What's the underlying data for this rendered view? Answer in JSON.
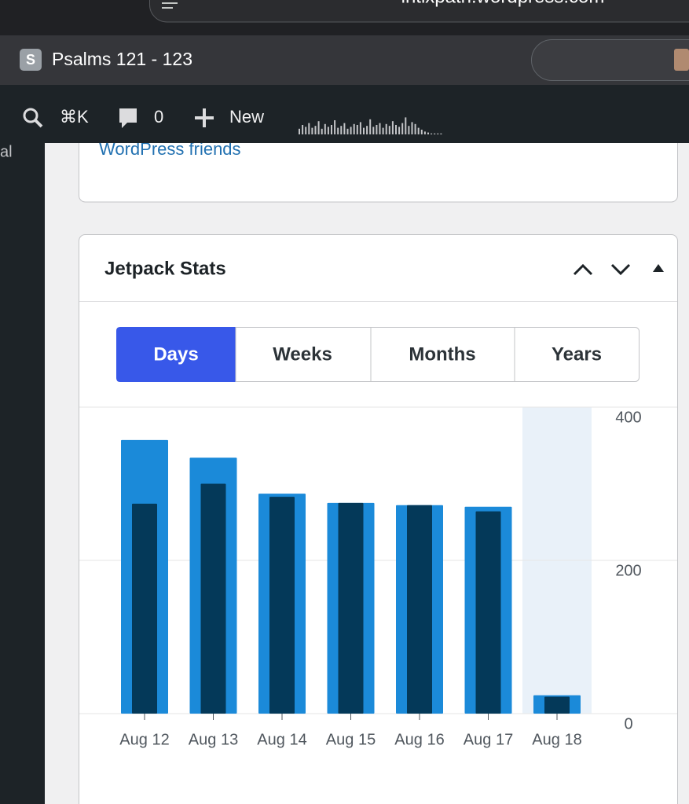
{
  "browser": {
    "url": "intlxpath.wordpress.com",
    "tab_icon": "S",
    "tab_title": "Psalms 121 - 123"
  },
  "admin_bar": {
    "shortcut": "⌘K",
    "comments": "0",
    "new": "New",
    "sparkline": [
      6,
      10,
      8,
      12,
      7,
      9,
      14,
      6,
      11,
      8,
      10,
      15,
      7,
      9,
      12,
      6,
      8,
      11,
      10,
      13,
      7,
      9,
      16,
      8,
      10,
      12,
      7,
      11,
      9,
      14,
      10,
      8,
      12,
      18,
      9,
      13,
      11,
      7,
      5,
      3,
      2,
      1,
      1,
      1,
      1
    ]
  },
  "sidebar": {
    "item": "al"
  },
  "previous_card": {
    "link": "WordPress friends"
  },
  "stats_card": {
    "title": "Jetpack Stats",
    "tabs": [
      "Days",
      "Weeks",
      "Months",
      "Years"
    ]
  },
  "chart_data": {
    "type": "bar",
    "categories": [
      "Aug 12",
      "Aug 13",
      "Aug 14",
      "Aug 15",
      "Aug 16",
      "Aug 17",
      "Aug 18"
    ],
    "series": [
      {
        "color": "#1b8ad9",
        "values": [
          357,
          334,
          287,
          275,
          272,
          270,
          24
        ]
      },
      {
        "color": "#043959",
        "values": [
          274,
          300,
          283,
          275,
          272,
          264,
          22
        ]
      }
    ],
    "ylim": [
      0,
      400
    ],
    "yticks": [
      0,
      200,
      400
    ],
    "grid": true,
    "highlight_index": 6
  }
}
